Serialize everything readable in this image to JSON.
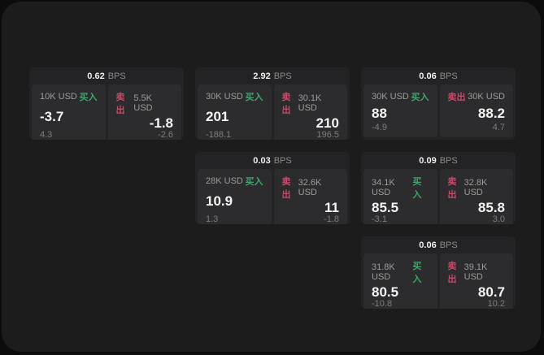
{
  "labels": {
    "bps": "BPS",
    "buy": "买入",
    "sell": "卖出"
  },
  "colors": {
    "buy": "#3fa56b",
    "sell": "#c8496a"
  },
  "cards": [
    {
      "col": 1,
      "row": 1,
      "bps": "0.62",
      "buy": {
        "amount": "10K USD",
        "value": "-3.7",
        "sub": "4.3"
      },
      "sell": {
        "amount": "5.5K USD",
        "value": "-1.8",
        "sub": "-2.6"
      }
    },
    {
      "col": 2,
      "row": 1,
      "bps": "2.92",
      "buy": {
        "amount": "30K USD",
        "value": "201",
        "sub": "-188.1"
      },
      "sell": {
        "amount": "30.1K USD",
        "value": "210",
        "sub": "196.5"
      }
    },
    {
      "col": 3,
      "row": 1,
      "bps": "0.06",
      "buy": {
        "amount": "30K USD",
        "value": "88",
        "sub": "-4.9"
      },
      "sell": {
        "amount": "30K USD",
        "value": "88.2",
        "sub": "4.7"
      }
    },
    {
      "col": 2,
      "row": 2,
      "bps": "0.03",
      "buy": {
        "amount": "28K USD",
        "value": "10.9",
        "sub": "1.3"
      },
      "sell": {
        "amount": "32.6K USD",
        "value": "11",
        "sub": "-1.8"
      }
    },
    {
      "col": 3,
      "row": 2,
      "bps": "0.09",
      "buy": {
        "amount": "34.1K USD",
        "value": "85.5",
        "sub": "-3.1"
      },
      "sell": {
        "amount": "32.8K USD",
        "value": "85.8",
        "sub": "3.0"
      }
    },
    {
      "col": 3,
      "row": 3,
      "bps": "0.06",
      "buy": {
        "amount": "31.8K USD",
        "value": "80.5",
        "sub": "-10.8"
      },
      "sell": {
        "amount": "39.1K USD",
        "value": "80.7",
        "sub": "10.2"
      }
    }
  ]
}
